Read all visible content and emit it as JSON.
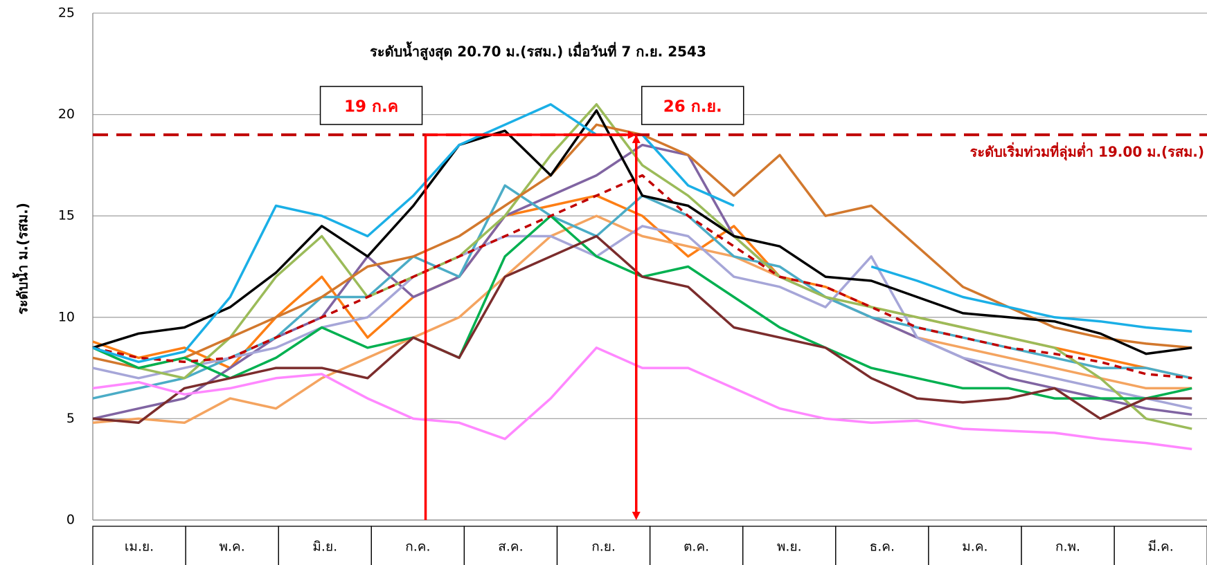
{
  "chart_data": {
    "type": "line",
    "annotation": "ระดับน้ำสูงสุด 20.70 ม.(รสม.) เมื่อวันที่ 7 ก.ย. 2543",
    "ylabel": "ระดับน้ำ ม.(รสม.)",
    "categories": [
      "เม.ย.",
      "พ.ค.",
      "มิ.ย.",
      "ก.ค.",
      "ส.ค.",
      "ก.ย.",
      "ต.ค.",
      "พ.ย.",
      "ธ.ค.",
      "ม.ค.",
      "ก.พ.",
      "มี.ค."
    ],
    "ylim": [
      0,
      25
    ],
    "yticks": [
      0,
      5,
      10,
      15,
      20,
      25
    ],
    "grid": true,
    "xlim": [
      0,
      365
    ],
    "x": [
      0,
      15,
      30,
      45,
      60,
      75,
      90,
      105,
      120,
      135,
      150,
      165,
      180,
      195,
      210,
      225,
      240,
      255,
      270,
      285,
      300,
      315,
      330,
      345,
      360
    ],
    "threshold": {
      "value": 19,
      "label": "ระดับเริ่มท่วมที่ลุ่มต่ำ 19.00 ม.(รสม.)",
      "color": "#c00000"
    },
    "markers": [
      {
        "label": "19 ก.ค",
        "day": 109
      },
      {
        "label": "26 ก.ย.",
        "day": 178
      }
    ],
    "marker_color": "#ff0000",
    "series": [
      {
        "color": "#fd7e14",
        "values": [
          8.8,
          8,
          8.5,
          7.5,
          10,
          12,
          9,
          11,
          12,
          15,
          15.5,
          16,
          15,
          13,
          14.5,
          12,
          11.5,
          10.5,
          10,
          9.5,
          9,
          8.5,
          8,
          7.5,
          7
        ]
      },
      {
        "color": "#f4a460",
        "values": [
          4.8,
          5,
          4.8,
          6,
          5.5,
          7,
          8,
          9,
          10,
          12,
          14,
          15,
          14,
          13.5,
          13,
          12,
          11,
          10,
          9,
          8.5,
          8,
          7.5,
          7,
          6.5,
          6.5
        ]
      },
      {
        "color": "#8064a2",
        "values": [
          5,
          5.5,
          6,
          7.5,
          9,
          10,
          13,
          11,
          12,
          15,
          16,
          17,
          18.5,
          18,
          14,
          12,
          11,
          10,
          9,
          8,
          7,
          6.5,
          6,
          5.5,
          5.2
        ]
      },
      {
        "color": "#4bacc6",
        "values": [
          6,
          6.5,
          7,
          8,
          9,
          11,
          11,
          13,
          12,
          16.5,
          15,
          14,
          16,
          15,
          13,
          12.5,
          11,
          10,
          9.5,
          9,
          8.5,
          8,
          7.5,
          7.5,
          7
        ]
      },
      {
        "color": "#a6a6d8",
        "values": [
          7.5,
          7,
          7.5,
          8,
          8.5,
          9.5,
          10,
          12,
          13,
          14,
          14,
          13,
          14.5,
          14,
          12,
          11.5,
          10.5,
          13,
          9,
          8,
          7.5,
          7,
          6.5,
          6,
          5.5
        ]
      },
      {
        "color": "#9bbb59",
        "values": [
          8.5,
          7.5,
          7,
          9,
          12,
          14,
          11,
          12,
          13,
          15,
          18,
          20.5,
          17.5,
          16,
          14,
          12,
          11,
          10.5,
          10,
          9.5,
          9,
          8.5,
          7,
          5,
          4.5
        ]
      },
      {
        "color": "#d2782d",
        "values": [
          8,
          7.5,
          8,
          9,
          10,
          11,
          12.5,
          13,
          14,
          15.5,
          17,
          19.5,
          19,
          18,
          16,
          18,
          15,
          15.5,
          13.5,
          11.5,
          10.5,
          9.5,
          9,
          8.7,
          8.5
        ]
      },
      {
        "color": "#00b050",
        "values": [
          8.5,
          7.5,
          8,
          7,
          8,
          9.5,
          8.5,
          9,
          8,
          13,
          15,
          13,
          12,
          12.5,
          11,
          9.5,
          8.5,
          7.5,
          7,
          6.5,
          6.5,
          6,
          6,
          6,
          6.5
        ]
      },
      {
        "color": "#7b2c2c",
        "values": [
          5,
          4.8,
          6.5,
          7,
          7.5,
          7.5,
          7,
          9,
          8,
          12,
          13,
          14,
          12,
          11.5,
          9.5,
          9,
          8.5,
          7,
          6,
          5.8,
          6,
          6.5,
          5,
          6,
          6
        ]
      },
      {
        "color": "#ff88ff",
        "values": [
          6.5,
          6.8,
          6.2,
          6.5,
          7,
          7.2,
          6,
          5,
          4.8,
          4,
          6,
          8.5,
          7.5,
          7.5,
          6.5,
          5.5,
          5,
          4.8,
          4.9,
          4.5,
          4.4,
          4.3,
          4,
          3.8,
          3.5
        ]
      },
      {
        "color": "#c00000",
        "dashed": true,
        "values": [
          8.5,
          8,
          7.8,
          8,
          9,
          10,
          11,
          12,
          13,
          14,
          15,
          16,
          17,
          15,
          13.5,
          12,
          11.5,
          10.5,
          9.5,
          9,
          8.5,
          8.2,
          7.8,
          7.2,
          7
        ]
      },
      {
        "color": "#000000",
        "values": [
          8.5,
          9.2,
          9.5,
          10.5,
          12.2,
          14.5,
          13,
          15.5,
          18.5,
          19.2,
          17,
          20.2,
          16,
          15.5,
          14,
          13.5,
          12,
          11.8,
          11,
          10.2,
          10,
          9.8,
          9.2,
          8.2,
          8.5
        ]
      },
      {
        "color": "#1aafe6",
        "values": [
          8.5,
          7.8,
          8.3,
          11,
          15.5,
          15,
          14,
          16,
          18.5,
          19.5,
          20.5,
          19,
          19,
          16.5,
          15.5,
          null,
          null,
          12.5,
          11.8,
          11,
          10.5,
          10,
          9.8,
          9.5,
          9.3
        ]
      }
    ]
  }
}
